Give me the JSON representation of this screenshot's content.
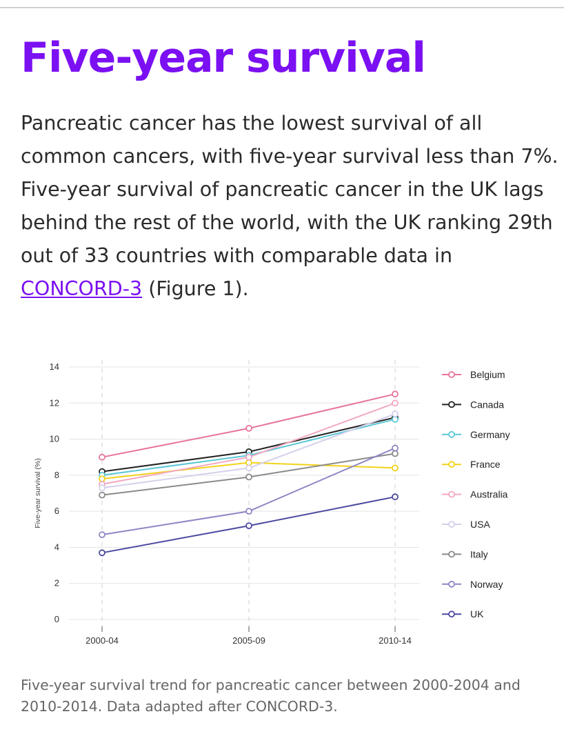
{
  "page": {
    "heading": "Five-year survival",
    "intro_before_link": "Pancreatic cancer has the lowest survival of all common cancers, with five-year survival less than 7%. Five-year survival of pancreatic cancer in the UK lags behind the rest of the world, with the UK ranking 29th out of 33 countries with comparable data in ",
    "intro_link": "CONCORD-3",
    "intro_after_link": " (Figure 1).",
    "caption": "Five-year survival trend for pancreatic cancer between 2000-2004 and 2010-2014. Data adapted after CONCORD-3."
  },
  "chart_data": {
    "type": "line",
    "title": "",
    "xlabel": "",
    "ylabel": "Five-year survival (%)",
    "categories": [
      "2000-04",
      "2005-09",
      "2010-14"
    ],
    "ylim": [
      0,
      14
    ],
    "yticks": [
      0,
      2,
      4,
      6,
      8,
      10,
      12,
      14
    ],
    "grid": "horizontal solid, vertical dashed",
    "legend_position": "right",
    "series": [
      {
        "name": "Belgium",
        "color": "#e8749a",
        "values": [
          9.0,
          10.6,
          12.5
        ]
      },
      {
        "name": "Canada",
        "color": "#222222",
        "values": [
          8.2,
          9.3,
          11.2
        ]
      },
      {
        "name": "Germany",
        "color": "#5cc7d6",
        "values": [
          8.0,
          9.1,
          11.1
        ]
      },
      {
        "name": "France",
        "color": "#f2d21a",
        "values": [
          7.8,
          8.7,
          8.4
        ]
      },
      {
        "name": "Australia",
        "color": "#f2a8c2",
        "values": [
          7.5,
          9.0,
          12.0
        ]
      },
      {
        "name": "USA",
        "color": "#d4d0ea",
        "values": [
          7.3,
          8.4,
          11.4
        ]
      },
      {
        "name": "Italy",
        "color": "#8a8a8a",
        "values": [
          6.9,
          7.9,
          9.2
        ]
      },
      {
        "name": "Norway",
        "color": "#8e86c4",
        "values": [
          4.7,
          6.0,
          9.5
        ]
      },
      {
        "name": "UK",
        "color": "#4b48a0",
        "values": [
          3.7,
          5.2,
          6.8
        ]
      }
    ]
  }
}
